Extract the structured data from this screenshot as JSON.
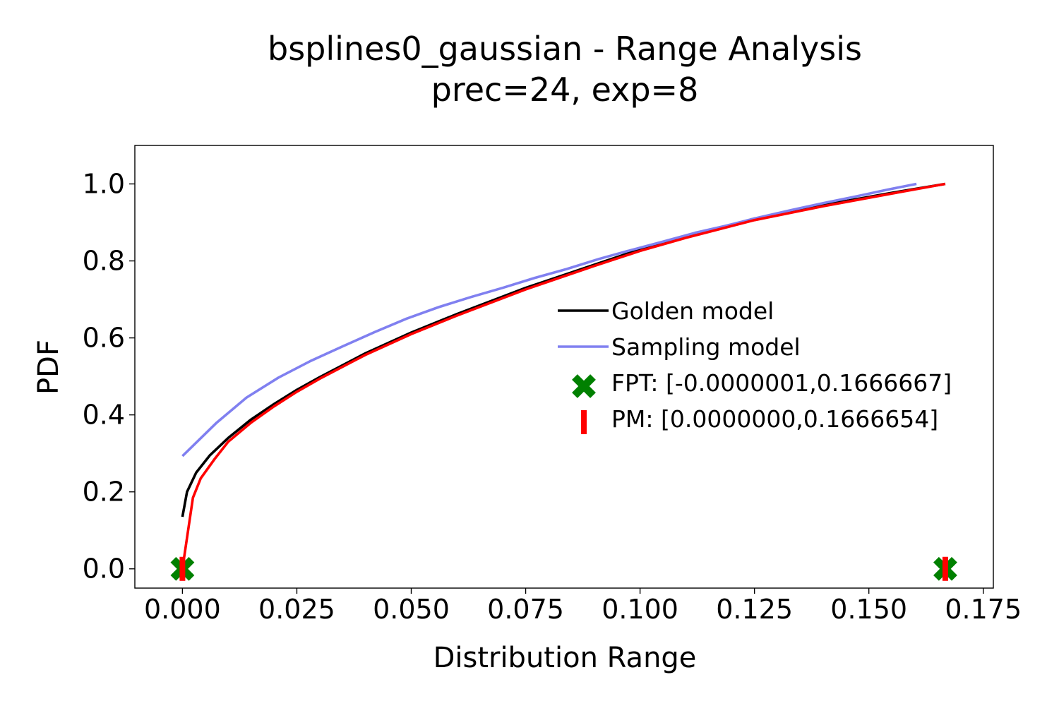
{
  "chart_data": {
    "type": "line",
    "title": "bsplines0_gaussian - Range Analysis",
    "subtitle": "prec=24, exp=8",
    "xlabel": "Distribution Range",
    "ylabel": "PDF",
    "xlim": [
      -0.0104,
      0.1772
    ],
    "ylim": [
      -0.05,
      1.1
    ],
    "xticks": [
      0.0,
      0.025,
      0.05,
      0.075,
      0.1,
      0.125,
      0.15,
      0.175
    ],
    "xtick_labels": [
      "0.000",
      "0.025",
      "0.050",
      "0.075",
      "0.100",
      "0.125",
      "0.150",
      "0.175"
    ],
    "yticks": [
      0.0,
      0.2,
      0.4,
      0.6,
      0.8,
      1.0
    ],
    "ytick_labels": [
      "0.0",
      "0.2",
      "0.4",
      "0.6",
      "0.8",
      "1.0"
    ],
    "grid": false,
    "legend_position": "center-right",
    "series": [
      {
        "name": "Golden model",
        "kind": "line",
        "color": "#000000",
        "x": [
          0.0,
          0.001,
          0.003,
          0.006,
          0.01,
          0.015,
          0.02,
          0.025,
          0.03,
          0.04,
          0.05,
          0.06,
          0.075,
          0.09,
          0.1,
          0.11,
          0.125,
          0.14,
          0.155,
          0.1667
        ],
        "y": [
          0.135,
          0.2,
          0.25,
          0.295,
          0.34,
          0.388,
          0.428,
          0.465,
          0.498,
          0.56,
          0.614,
          0.662,
          0.73,
          0.79,
          0.83,
          0.862,
          0.91,
          0.945,
          0.977,
          1.0
        ]
      },
      {
        "name": "Sampling model",
        "kind": "line",
        "color": "#8080f0",
        "x": [
          0.0,
          0.0075,
          0.014,
          0.021,
          0.028,
          0.035,
          0.042,
          0.049,
          0.056,
          0.063,
          0.07,
          0.077,
          0.084,
          0.091,
          0.098,
          0.105,
          0.112,
          0.119,
          0.126,
          0.133,
          0.14,
          0.147,
          0.154,
          0.1604
        ],
        "y": [
          0.293,
          0.38,
          0.445,
          0.497,
          0.54,
          0.578,
          0.615,
          0.65,
          0.68,
          0.706,
          0.73,
          0.756,
          0.779,
          0.805,
          0.828,
          0.85,
          0.873,
          0.892,
          0.913,
          0.932,
          0.95,
          0.967,
          0.985,
          1.0
        ]
      },
      {
        "name": "PM: [0.0000000,0.1666654]",
        "kind": "line",
        "color": "#ff0000",
        "x": [
          0.0,
          0.0023,
          0.004,
          0.007,
          0.01,
          0.015,
          0.02,
          0.025,
          0.03,
          0.04,
          0.05,
          0.06,
          0.075,
          0.09,
          0.1,
          0.11,
          0.125,
          0.14,
          0.155,
          0.1667
        ],
        "y": [
          0.0,
          0.185,
          0.235,
          0.285,
          0.33,
          0.38,
          0.422,
          0.46,
          0.494,
          0.556,
          0.61,
          0.658,
          0.726,
          0.787,
          0.826,
          0.86,
          0.906,
          0.942,
          0.975,
          1.0
        ]
      }
    ],
    "markers": [
      {
        "name": "FPT: [-0.0000001,0.1666667]",
        "kind": "x",
        "color": "#008000",
        "x": [
          0.0,
          0.1667
        ],
        "y": [
          0.0,
          0.0
        ]
      },
      {
        "name": "PM: [0.0000000,0.1666654]",
        "kind": "bar-tick",
        "color": "#ff0000",
        "x": [
          0.0,
          0.1667
        ],
        "y": [
          0.0,
          0.0
        ]
      }
    ],
    "legend": [
      {
        "label": "Golden model",
        "kind": "line",
        "color": "#000000"
      },
      {
        "label": "Sampling model",
        "kind": "line",
        "color": "#8080f0"
      },
      {
        "label": "FPT: [-0.0000001,0.1666667]",
        "kind": "x",
        "color": "#008000"
      },
      {
        "label": "PM: [0.0000000,0.1666654]",
        "kind": "bar-tick",
        "color": "#ff0000"
      }
    ]
  }
}
